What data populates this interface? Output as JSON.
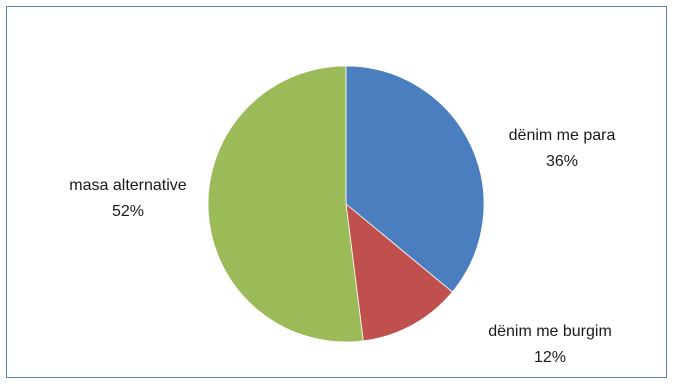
{
  "chart_data": {
    "type": "pie",
    "title": "",
    "slices": [
      {
        "name": "dënim me para",
        "value": 36,
        "label": "36%",
        "color": "#4a7ebf"
      },
      {
        "name": "dënim me burgim",
        "value": 12,
        "label": "12%",
        "color": "#c0504d"
      },
      {
        "name": "masa alternative",
        "value": 52,
        "label": "52%",
        "color": "#9bbb59"
      }
    ],
    "start_angle_deg": 0,
    "direction": "clockwise",
    "legend": "none"
  }
}
